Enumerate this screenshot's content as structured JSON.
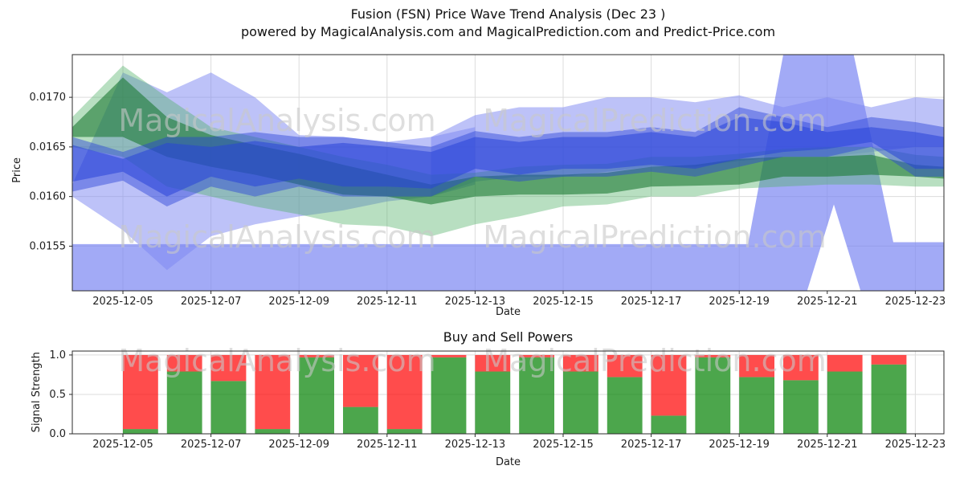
{
  "title": {
    "line1": "Fusion (FSN) Price Wave Trend Analysis (Dec 23 )",
    "line2": "powered by MagicalAnalysis.com and MagicalPrediction.com and Predict-Price.com"
  },
  "watermark": {
    "texts": [
      "MagicalAnalysis.com",
      "MagicalPrediction.com"
    ],
    "color": "#c8c8c8"
  },
  "chart_data": [
    {
      "type": "area",
      "title": "",
      "xlabel": "Date",
      "ylabel": "Price",
      "ylim": [
        0.01505,
        0.01743
      ],
      "xlim_days": [
        3.85,
        23.65
      ],
      "grid": true,
      "yticks": [
        {
          "v": 0.0155,
          "label": "0.0155"
        },
        {
          "v": 0.016,
          "label": "0.0160"
        },
        {
          "v": 0.0165,
          "label": "0.0165"
        },
        {
          "v": 0.017,
          "label": "0.0170"
        }
      ],
      "xticks": [
        {
          "day": 5,
          "label": "2025-12-05"
        },
        {
          "day": 7,
          "label": "2025-12-07"
        },
        {
          "day": 9,
          "label": "2025-12-09"
        },
        {
          "day": 11,
          "label": "2025-12-11"
        },
        {
          "day": 13,
          "label": "2025-12-13"
        },
        {
          "day": 15,
          "label": "2025-12-15"
        },
        {
          "day": 17,
          "label": "2025-12-17"
        },
        {
          "day": 19,
          "label": "2025-12-19"
        },
        {
          "day": 21,
          "label": "2025-12-21"
        },
        {
          "day": 23,
          "label": "2025-12-23"
        }
      ],
      "bands": [
        {
          "name": "envelope",
          "color": "#7b86f2",
          "opacity": 0.7,
          "days": [
            3.85,
            19.2,
            20.0,
            21.6,
            22.5,
            23.65
          ],
          "upper": [
            0.01552,
            0.01552,
            0.01743,
            0.01743,
            0.01554,
            0.01554
          ],
          "lower": [
            0.01504,
            0.01504,
            0.01504,
            0.01504,
            0.01504,
            0.01504
          ]
        },
        {
          "name": "envelope-notch",
          "color": "#ffffff",
          "opacity": 1,
          "days": [
            20.55,
            21.15,
            21.75
          ],
          "upper": [
            0.01506,
            0.01592,
            0.01506
          ],
          "lower": [
            0.01504,
            0.01504,
            0.01504
          ]
        },
        {
          "name": "lavender-left",
          "color": "#7b86f2",
          "opacity": 0.5,
          "days": [
            3.85,
            5,
            6,
            7,
            8,
            9,
            10,
            11,
            12,
            13
          ],
          "upper": [
            0.01612,
            0.01725,
            0.01705,
            0.01725,
            0.017,
            0.01662,
            0.0166,
            0.01655,
            0.0166,
            0.0167
          ],
          "lower": [
            0.016,
            0.01566,
            0.01526,
            0.0156,
            0.01572,
            0.0158,
            0.01586,
            0.01595,
            0.016,
            0.01612
          ]
        },
        {
          "name": "lavender-right",
          "color": "#7b86f2",
          "opacity": 0.5,
          "days": [
            12,
            13,
            14,
            15,
            16,
            17,
            18,
            19,
            20,
            21,
            22,
            23,
            23.65
          ],
          "upper": [
            0.0166,
            0.01682,
            0.0169,
            0.0169,
            0.017,
            0.017,
            0.01695,
            0.01702,
            0.0169,
            0.017,
            0.0169,
            0.017,
            0.01698
          ],
          "lower": [
            0.016,
            0.01615,
            0.0162,
            0.0162,
            0.01625,
            0.0163,
            0.0163,
            0.01636,
            0.0164,
            0.0164,
            0.01645,
            0.0165,
            0.0165
          ]
        },
        {
          "name": "green-outer",
          "color": "#4daf63",
          "opacity": 0.4,
          "days": [
            3.85,
            5,
            6,
            7,
            8,
            9,
            10,
            11,
            12,
            13,
            14,
            15,
            16,
            17,
            18,
            19,
            20,
            21,
            22,
            23,
            23.65
          ],
          "upper": [
            0.0168,
            0.01732,
            0.017,
            0.0167,
            0.0166,
            0.0165,
            0.0164,
            0.01632,
            0.01622,
            0.01624,
            0.0163,
            0.01632,
            0.01633,
            0.0164,
            0.0164,
            0.01643,
            0.01648,
            0.0165,
            0.0165,
            0.01642,
            0.0164
          ],
          "lower": [
            0.0165,
            0.0164,
            0.0161,
            0.016,
            0.0159,
            0.01582,
            0.01572,
            0.0157,
            0.0156,
            0.01572,
            0.0158,
            0.0159,
            0.01592,
            0.016,
            0.016,
            0.01608,
            0.0161,
            0.01612,
            0.01612,
            0.0161,
            0.0161
          ]
        },
        {
          "name": "green-main",
          "color": "#1d7a33",
          "opacity": 0.6,
          "days": [
            3.85,
            5,
            6,
            7,
            8,
            9,
            10,
            11,
            12,
            13,
            14,
            15,
            16,
            17,
            18,
            19,
            20,
            21,
            22,
            23,
            23.65
          ],
          "upper": [
            0.0167,
            0.0172,
            0.0168,
            0.01662,
            0.01652,
            0.01643,
            0.01632,
            0.01622,
            0.01612,
            0.0162,
            0.01622,
            0.01622,
            0.01624,
            0.0163,
            0.01632,
            0.01638,
            0.0164,
            0.0164,
            0.01642,
            0.01632,
            0.0163
          ],
          "lower": [
            0.0166,
            0.0166,
            0.0164,
            0.0163,
            0.01622,
            0.01612,
            0.01602,
            0.016,
            0.01592,
            0.016,
            0.01602,
            0.01602,
            0.01603,
            0.0161,
            0.01611,
            0.01612,
            0.0162,
            0.0162,
            0.01622,
            0.0162,
            0.01618
          ]
        },
        {
          "name": "blue-outer",
          "color": "#2843d8",
          "opacity": 0.45,
          "days": [
            3.85,
            5,
            6,
            7,
            8,
            9,
            10,
            11,
            12,
            13,
            14,
            15,
            16,
            17,
            18,
            19,
            20,
            21,
            22,
            23,
            23.65
          ],
          "upper": [
            0.0166,
            0.01645,
            0.0166,
            0.0166,
            0.01665,
            0.0166,
            0.0166,
            0.01655,
            0.0165,
            0.01666,
            0.0166,
            0.01665,
            0.01665,
            0.0167,
            0.01665,
            0.0169,
            0.0168,
            0.0167,
            0.0168,
            0.01675,
            0.0167
          ],
          "lower": [
            0.01605,
            0.01616,
            0.0159,
            0.0161,
            0.016,
            0.0161,
            0.016,
            0.016,
            0.016,
            0.0162,
            0.01615,
            0.0162,
            0.0162,
            0.01625,
            0.0162,
            0.0163,
            0.0164,
            0.0164,
            0.0165,
            0.0162,
            0.0162
          ]
        },
        {
          "name": "blue-core",
          "color": "#2843d8",
          "opacity": 0.55,
          "days": [
            3.85,
            5,
            6,
            7,
            8,
            9,
            10,
            11,
            12,
            13,
            14,
            15,
            16,
            17,
            18,
            19,
            20,
            21,
            22,
            23,
            23.65
          ],
          "upper": [
            0.01652,
            0.01638,
            0.01654,
            0.0165,
            0.01656,
            0.0165,
            0.01654,
            0.0165,
            0.01645,
            0.0166,
            0.01655,
            0.0166,
            0.0166,
            0.01665,
            0.0166,
            0.0168,
            0.01675,
            0.01665,
            0.0167,
            0.01665,
            0.0166
          ],
          "lower": [
            0.01615,
            0.01625,
            0.016,
            0.0162,
            0.0161,
            0.01618,
            0.0161,
            0.0161,
            0.01608,
            0.01628,
            0.01622,
            0.01628,
            0.01628,
            0.01632,
            0.01628,
            0.01638,
            0.01645,
            0.01648,
            0.01655,
            0.01628,
            0.01628
          ]
        }
      ]
    },
    {
      "type": "bar",
      "stacked": true,
      "title": "Buy and Sell Powers",
      "xlabel": "Date",
      "ylabel": "Signal Strength",
      "ylim": [
        0,
        1.05
      ],
      "yticks": [
        {
          "v": 0.0,
          "label": "0.0"
        },
        {
          "v": 0.5,
          "label": "0.5"
        },
        {
          "v": 1.0,
          "label": "1.0"
        }
      ],
      "xticks": [
        {
          "day": 5,
          "label": "2025-12-05"
        },
        {
          "day": 7,
          "label": "2025-12-07"
        },
        {
          "day": 9,
          "label": "2025-12-09"
        },
        {
          "day": 11,
          "label": "2025-12-11"
        },
        {
          "day": 13,
          "label": "2025-12-13"
        },
        {
          "day": 15,
          "label": "2025-12-15"
        },
        {
          "day": 17,
          "label": "2025-12-17"
        },
        {
          "day": 19,
          "label": "2025-12-19"
        },
        {
          "day": 21,
          "label": "2025-12-21"
        },
        {
          "day": 23,
          "label": "2025-12-23"
        }
      ],
      "categories": [
        "2025-12-06",
        "2025-12-07",
        "2025-12-08",
        "2025-12-09",
        "2025-12-10",
        "2025-12-11",
        "2025-12-12",
        "2025-12-13",
        "2025-12-14",
        "2025-12-15",
        "2025-12-16",
        "2025-12-17",
        "2025-12-18",
        "2025-12-19",
        "2025-12-20",
        "2025-12-21",
        "2025-12-22",
        "2025-12-23"
      ],
      "series": [
        {
          "name": "Buy",
          "color": "#008000",
          "opacity": 0.7,
          "values": [
            0.06,
            0.79,
            0.67,
            0.06,
            0.97,
            0.34,
            0.06,
            0.97,
            0.79,
            0.97,
            0.79,
            0.72,
            0.23,
            0.97,
            0.72,
            0.68,
            0.79,
            0.88
          ]
        },
        {
          "name": "Sell",
          "color": "#ff0000",
          "opacity": 0.7,
          "values": [
            0.94,
            0.21,
            0.33,
            0.94,
            0.03,
            0.66,
            0.94,
            0.03,
            0.21,
            0.03,
            0.21,
            0.28,
            0.77,
            0.03,
            0.28,
            0.32,
            0.21,
            0.12
          ]
        }
      ]
    }
  ]
}
